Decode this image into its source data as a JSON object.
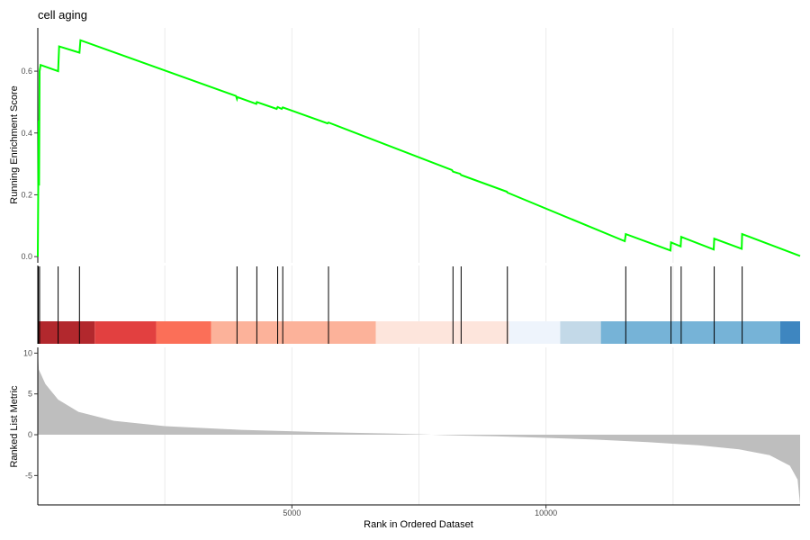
{
  "chart_data": {
    "type": "line",
    "title": "cell aging",
    "x_label": "Rank in Ordered Dataset",
    "x_range": [
      0,
      15000
    ],
    "x_ticks": [
      5000,
      10000
    ],
    "x_tick_labels": [
      "5000",
      "10000"
    ],
    "x_grid": [
      2500,
      5000,
      7500,
      10000,
      12500
    ],
    "panels": [
      {
        "name": "running-enrichment-score",
        "y_label": "Running Enrichment Score",
        "y_range": [
          -0.02,
          0.74
        ],
        "y_ticks": [
          0.0,
          0.2,
          0.4,
          0.6
        ],
        "y_tick_labels": [
          "0.0",
          "0.2",
          "0.4",
          "0.6"
        ],
        "line_color": "#00FF00",
        "points": [
          [
            0,
            0.0
          ],
          [
            18,
            0.44
          ],
          [
            25,
            0.23
          ],
          [
            35,
            0.6
          ],
          [
            55,
            0.62
          ],
          [
            400,
            0.6
          ],
          [
            420,
            0.68
          ],
          [
            820,
            0.66
          ],
          [
            840,
            0.7
          ],
          [
            3900,
            0.52
          ],
          [
            3920,
            0.51
          ],
          [
            3930,
            0.516
          ],
          [
            4300,
            0.494
          ],
          [
            4310,
            0.5
          ],
          [
            4700,
            0.478
          ],
          [
            4720,
            0.484
          ],
          [
            4800,
            0.478
          ],
          [
            4820,
            0.483
          ],
          [
            5700,
            0.431
          ],
          [
            5720,
            0.434
          ],
          [
            8150,
            0.28
          ],
          [
            8170,
            0.275
          ],
          [
            8310,
            0.268
          ],
          [
            8330,
            0.264
          ],
          [
            9230,
            0.21
          ],
          [
            9240,
            0.207
          ],
          [
            11550,
            0.05
          ],
          [
            11570,
            0.073
          ],
          [
            12450,
            0.02
          ],
          [
            12460,
            0.046
          ],
          [
            12650,
            0.033
          ],
          [
            12660,
            0.064
          ],
          [
            13300,
            0.023
          ],
          [
            13310,
            0.058
          ],
          [
            13850,
            0.025
          ],
          [
            13860,
            0.073
          ],
          [
            15000,
            0.002
          ]
        ]
      },
      {
        "name": "gene-hits",
        "hits": [
          10,
          35,
          400,
          820,
          3920,
          4310,
          4720,
          4820,
          5720,
          8170,
          8330,
          9240,
          11570,
          12460,
          12660,
          13310,
          13860
        ],
        "color_bands": [
          {
            "from": 0,
            "to": 1120,
            "color": "#b2282d"
          },
          {
            "from": 1120,
            "to": 2330,
            "color": "#e24040"
          },
          {
            "from": 2330,
            "to": 3410,
            "color": "#fb6f58"
          },
          {
            "from": 3410,
            "to": 6650,
            "color": "#fcb29a"
          },
          {
            "from": 6650,
            "to": 9270,
            "color": "#fde5dc"
          },
          {
            "from": 9270,
            "to": 10280,
            "color": "#eef4fc"
          },
          {
            "from": 10280,
            "to": 11080,
            "color": "#c3d9e8"
          },
          {
            "from": 11080,
            "to": 14610,
            "color": "#76b3d7"
          },
          {
            "from": 14610,
            "to": 15000,
            "color": "#3e86c0"
          }
        ]
      },
      {
        "name": "ranked-list-metric",
        "y_label": "Ranked List Metric",
        "y_range": [
          -8.6,
          10.7
        ],
        "y_ticks": [
          10,
          5,
          0,
          -5
        ],
        "y_tick_labels": [
          "10",
          "5",
          "0",
          "-5"
        ],
        "fill_color": "#bebebe",
        "points": [
          [
            0,
            10.5
          ],
          [
            20,
            8.0
          ],
          [
            150,
            6.2
          ],
          [
            400,
            4.3
          ],
          [
            800,
            2.8
          ],
          [
            1500,
            1.7
          ],
          [
            2500,
            1.05
          ],
          [
            4000,
            0.6
          ],
          [
            5500,
            0.33
          ],
          [
            7000,
            0.14
          ],
          [
            7500,
            0.06
          ],
          [
            8000,
            -0.05
          ],
          [
            9000,
            -0.2
          ],
          [
            10000,
            -0.38
          ],
          [
            11000,
            -0.6
          ],
          [
            12000,
            -0.9
          ],
          [
            13000,
            -1.3
          ],
          [
            13800,
            -1.8
          ],
          [
            14400,
            -2.5
          ],
          [
            14800,
            -3.8
          ],
          [
            14950,
            -5.5
          ],
          [
            15000,
            -8.6
          ]
        ]
      }
    ]
  }
}
